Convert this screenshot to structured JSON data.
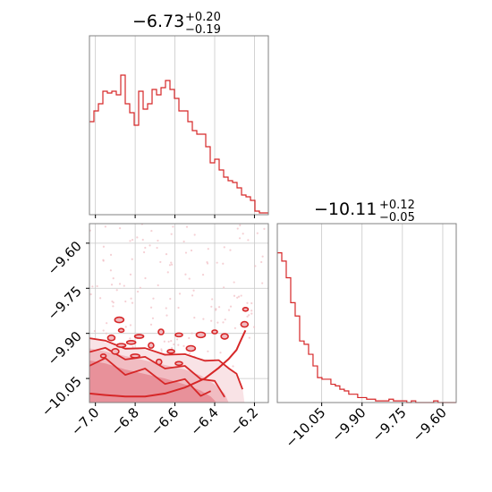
{
  "chart_data": {
    "type": "corner-plot",
    "colors": {
      "line": "#d62728",
      "fill_inner": "#e8919a",
      "fill_mid": "#f1bcc2",
      "fill_outer": "#f9e3e6",
      "grid": "#c8c8c8",
      "axes": "#808080"
    },
    "parameters": [
      {
        "title_value": "−6.73",
        "title_plus": "+0.20",
        "title_minus": "−0.19"
      },
      {
        "title_value": "−10.11",
        "title_plus": "+0.12",
        "title_minus": "−0.05"
      }
    ],
    "hist1": {
      "xlim": [
        -7.03,
        -6.13
      ],
      "x_ticks": [
        -7.0,
        -6.8,
        -6.6,
        -6.4,
        -6.2
      ],
      "bins_start": -7.03,
      "bin_width": 0.0225,
      "counts": [
        0.52,
        0.58,
        0.62,
        0.69,
        0.68,
        0.69,
        0.67,
        0.78,
        0.62,
        0.57,
        0.5,
        0.69,
        0.59,
        0.62,
        0.7,
        0.67,
        0.71,
        0.75,
        0.7,
        0.65,
        0.58,
        0.58,
        0.52,
        0.47,
        0.45,
        0.45,
        0.38,
        0.29,
        0.31,
        0.25,
        0.21,
        0.19,
        0.18,
        0.15,
        0.11,
        0.1,
        0.08,
        0.02,
        0.01,
        0.01
      ]
    },
    "hist2": {
      "xlim": [
        -10.215,
        -9.55
      ],
      "x_ticks": [
        -10.05,
        -9.9,
        -9.75,
        -9.6
      ],
      "x_tick_labels": [
        "−10.05",
        "−9.90",
        "−9.75",
        "−9.60"
      ],
      "bins_start": -10.215,
      "bin_width": 0.0166,
      "counts": [
        0.9,
        0.85,
        0.75,
        0.6,
        0.52,
        0.37,
        0.35,
        0.29,
        0.22,
        0.15,
        0.14,
        0.14,
        0.11,
        0.1,
        0.08,
        0.07,
        0.05,
        0.05,
        0.03,
        0.03,
        0.02,
        0.02,
        0.01,
        0.01,
        0.01,
        0.02,
        0.01,
        0.01,
        0.01,
        0.0,
        0.01,
        0.0,
        0.0,
        0.0,
        0.0,
        0.01,
        0.0,
        0.0,
        0.0,
        0.0
      ]
    },
    "scatter2d": {
      "xlim": [
        -7.03,
        -6.13
      ],
      "ylim": [
        -10.13,
        -9.535
      ],
      "x_ticks": [
        -7.0,
        -6.8,
        -6.6,
        -6.4,
        -6.2
      ],
      "x_tick_labels": [
        "−7.0",
        "−6.8",
        "−6.6",
        "−6.4",
        "−6.2"
      ],
      "y_ticks": [
        -9.6,
        -9.75,
        -9.9,
        -10.05
      ],
      "y_tick_labels": [
        "−9.60",
        "−9.75",
        "−9.90",
        "−10.05"
      ],
      "contour_level_inner": [
        [
          -7.03,
          -9.99
        ],
        [
          -6.95,
          -10.0
        ],
        [
          -6.85,
          -10.02
        ],
        [
          -6.75,
          -10.035
        ],
        [
          -6.65,
          -10.05
        ],
        [
          -6.55,
          -10.07
        ],
        [
          -6.47,
          -10.09
        ],
        [
          -6.42,
          -10.11
        ],
        [
          -6.39,
          -10.13
        ],
        [
          -7.03,
          -10.13
        ]
      ],
      "contour_level_mid": [
        [
          -7.03,
          -9.95
        ],
        [
          -6.95,
          -9.96
        ],
        [
          -6.85,
          -9.975
        ],
        [
          -6.75,
          -9.99
        ],
        [
          -6.65,
          -10.005
        ],
        [
          -6.55,
          -10.02
        ],
        [
          -6.47,
          -10.04
        ],
        [
          -6.4,
          -10.07
        ],
        [
          -6.35,
          -10.1
        ],
        [
          -6.33,
          -10.13
        ],
        [
          -7.03,
          -10.13
        ]
      ],
      "contour_level_outer": [
        [
          -7.03,
          -9.91
        ],
        [
          -6.95,
          -9.93
        ],
        [
          -6.85,
          -9.945
        ],
        [
          -6.75,
          -9.955
        ],
        [
          -6.65,
          -9.965
        ],
        [
          -6.55,
          -9.975
        ],
        [
          -6.45,
          -9.985
        ],
        [
          -6.38,
          -9.995
        ],
        [
          -6.33,
          -10.01
        ],
        [
          -6.29,
          -10.04
        ],
        [
          -6.26,
          -10.08
        ],
        [
          -6.25,
          -10.13
        ],
        [
          -7.03,
          -10.13
        ]
      ],
      "boundary_curve": [
        [
          -7.03,
          -10.1
        ],
        [
          -6.95,
          -10.105
        ],
        [
          -6.85,
          -10.11
        ],
        [
          -6.75,
          -10.11
        ],
        [
          -6.65,
          -10.1
        ],
        [
          -6.55,
          -10.08
        ],
        [
          -6.45,
          -10.05
        ],
        [
          -6.38,
          -10.015
        ],
        [
          -6.33,
          -9.985
        ],
        [
          -6.29,
          -9.955
        ],
        [
          -6.27,
          -9.925
        ],
        [
          -6.245,
          -9.89
        ]
      ],
      "islands": [
        [
          -6.87,
          -9.89
        ],
        [
          -6.92,
          -9.915
        ],
        [
          -6.78,
          -9.91
        ],
        [
          -6.67,
          -9.895
        ],
        [
          -6.58,
          -9.905
        ],
        [
          -6.47,
          -9.905
        ],
        [
          -6.4,
          -9.895
        ],
        [
          -6.35,
          -9.91
        ],
        [
          -6.87,
          -9.94
        ],
        [
          -6.72,
          -9.94
        ],
        [
          -6.62,
          -9.96
        ],
        [
          -6.52,
          -9.95
        ],
        [
          -6.96,
          -9.975
        ],
        [
          -6.9,
          -9.96
        ],
        [
          -6.8,
          -9.975
        ],
        [
          -6.68,
          -9.995
        ],
        [
          -6.58,
          -10.0
        ],
        [
          -6.88,
          -9.855
        ],
        [
          -6.245,
          -9.82
        ],
        [
          -6.25,
          -9.87
        ],
        [
          -6.82,
          -9.93
        ]
      ],
      "scatter_seed": 7,
      "scatter_count": 320
    }
  }
}
